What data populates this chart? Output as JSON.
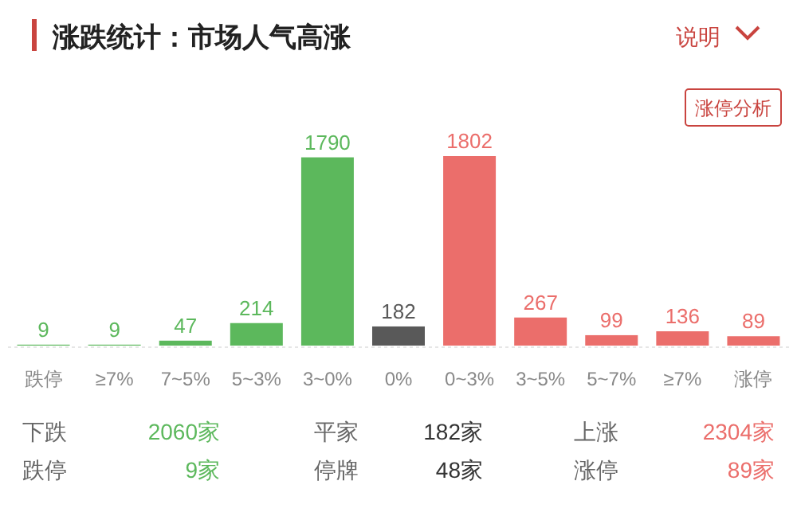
{
  "chart_data": {
    "type": "bar",
    "title": "涨跌统计：市场人气高涨",
    "categories": [
      "跌停",
      "≥7%",
      "7~5%",
      "5~3%",
      "3~0%",
      "0%",
      "0~3%",
      "3~5%",
      "5~7%",
      "≥7%",
      "涨停"
    ],
    "values": [
      9,
      9,
      47,
      214,
      1790,
      182,
      1802,
      267,
      99,
      136,
      89
    ],
    "colors": [
      "#5cb85c",
      "#5cb85c",
      "#5cb85c",
      "#5cb85c",
      "#5cb85c",
      "#595959",
      "#eb6e6b",
      "#eb6e6b",
      "#eb6e6b",
      "#eb6e6b",
      "#eb6e6b"
    ],
    "data_labels": true,
    "annotations": [
      "说明",
      "涨停分析",
      "下跌",
      "2060家",
      "平家",
      "182家",
      "上涨",
      "2304家",
      "跌停",
      "9家",
      "停牌",
      "48家",
      "涨停",
      "89家"
    ]
  }
}
